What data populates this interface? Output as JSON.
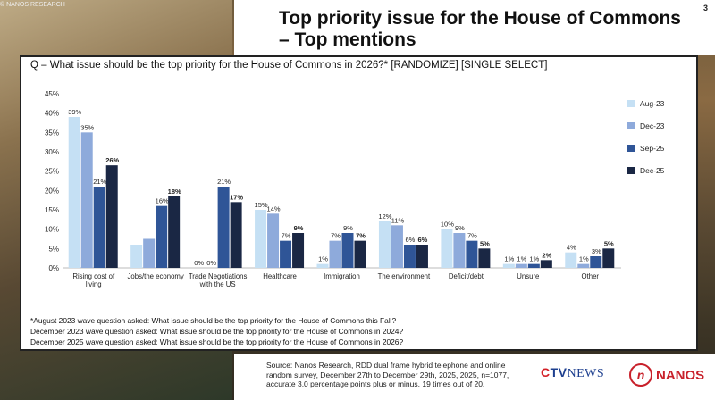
{
  "watermark": "© NANOS RESEARCH",
  "slide_number": "3",
  "title": "Top priority issue for the House of Commons – Top mentions",
  "question": "Q – What issue should be the top priority for the House of Commons in 2026?* [RANDOMIZE] [SINGLE SELECT]",
  "notes": [
    "*August 2023 wave question asked: What issue should be the top priority for the House of Commons this Fall?",
    "December 2023 wave question asked: What issue should be the top priority for the House of Commons in 2024?",
    "December 2025 wave question asked: What issue should be the top priority for the House of Commons in 2026?"
  ],
  "source_text": "Source: Nanos Research, RDD dual frame hybrid  telephone and online random survey, December 27th to December 29th, 2025,  2025, n=1077, accurate 3.0 percentage points plus or minus, 19 times out of 20.",
  "logos": {
    "ctv_c": "C",
    "ctv_rest": "TV",
    "news": "NEWS",
    "nanos_mark": "n",
    "nanos_word": "NANOS"
  },
  "chart_data": {
    "type": "bar",
    "title": "",
    "xlabel": "",
    "ylabel": "",
    "ylim": [
      0,
      45
    ],
    "yticks": [
      "0%",
      "5%",
      "10%",
      "15%",
      "20%",
      "25%",
      "30%",
      "35%",
      "40%",
      "45%"
    ],
    "categories": [
      "Rising cost of living",
      "Jobs/the economy",
      "Trade Negotiations with the US",
      "Healthcare",
      "Immigration",
      "The environment",
      "Deficit/debt",
      "Unsure",
      "Other"
    ],
    "series": [
      {
        "name": "Aug-23",
        "color": "#c5e0f4",
        "values": [
          39,
          6,
          0,
          15,
          1,
          12,
          10,
          1,
          4
        ],
        "labels": [
          "39%",
          "",
          "0%",
          "15%",
          "1%",
          "12%",
          "10%",
          "1%",
          "4%"
        ]
      },
      {
        "name": "Dec-23",
        "color": "#8eaadb",
        "values": [
          35,
          7.5,
          0,
          14,
          7,
          11,
          9,
          1,
          1
        ],
        "labels": [
          "35%",
          "",
          "0%",
          "14%",
          "7%",
          "11%",
          "9%",
          "1%",
          "1%"
        ]
      },
      {
        "name": "Sep-25",
        "color": "#2f5597",
        "values": [
          21,
          16,
          21,
          7,
          9,
          6,
          7,
          1,
          3
        ],
        "labels": [
          "21%",
          "16%",
          "21%",
          "7%",
          "9%",
          "6%",
          "7%",
          "1%",
          "3%"
        ]
      },
      {
        "name": "Dec-25",
        "color": "#1a2744",
        "values": [
          26.5,
          18.5,
          17,
          9,
          7,
          6,
          5,
          2,
          5
        ],
        "labels": [
          "26%",
          "18%",
          "17%",
          "9%",
          "7%",
          "6%",
          "5%",
          "2%",
          "5%"
        ]
      }
    ],
    "bold_series": "Dec-25",
    "legend_position": "right"
  }
}
